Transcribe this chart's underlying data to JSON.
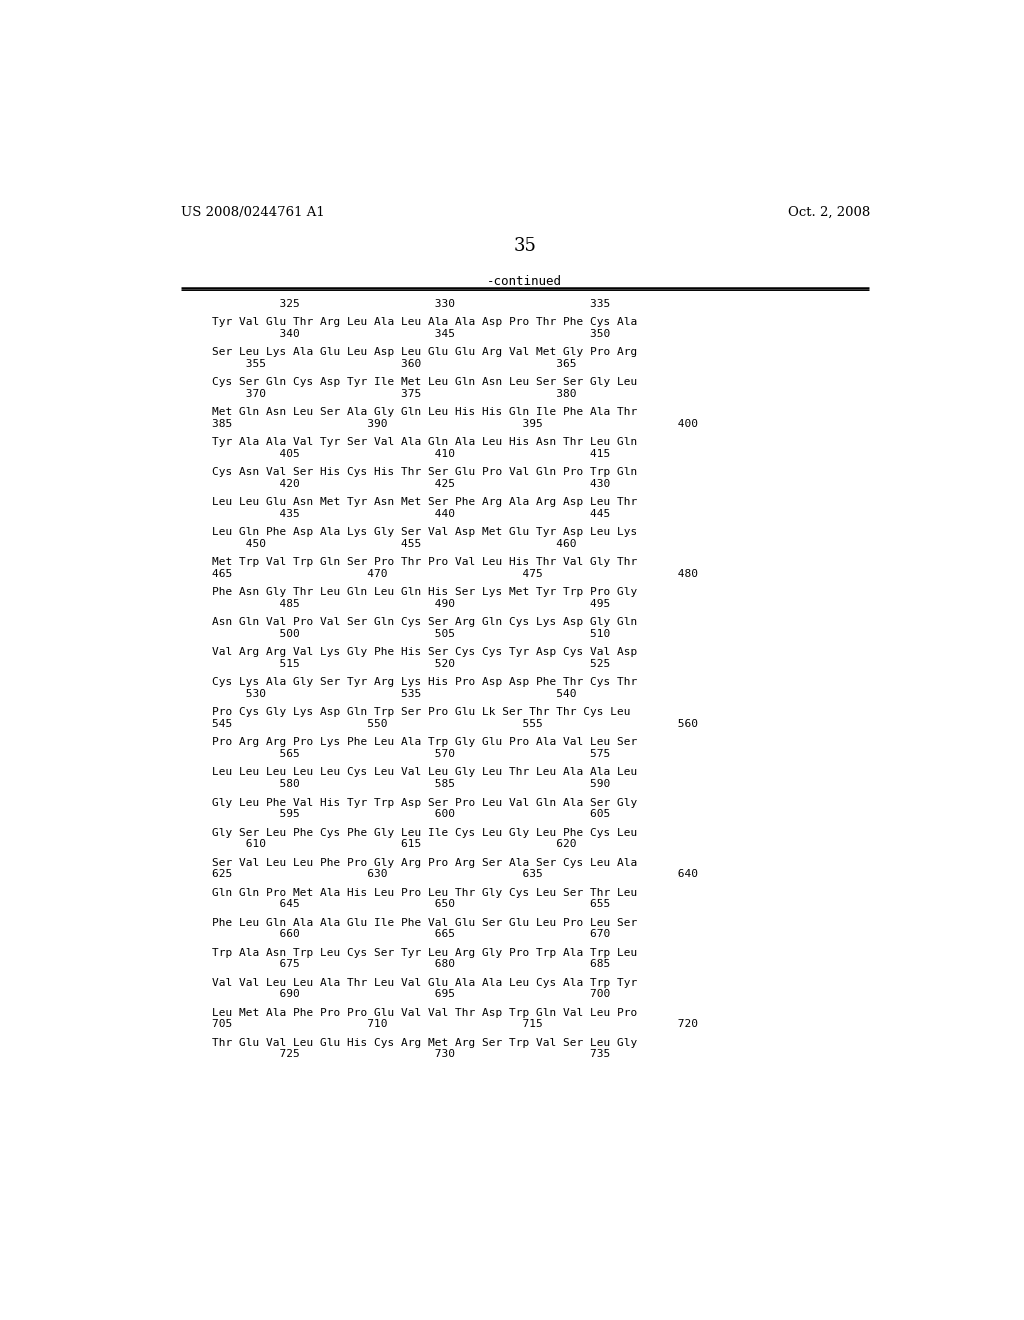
{
  "patent_number": "US 2008/0244761 A1",
  "patent_date": "Oct. 2, 2008",
  "page_number": "35",
  "continued_label": "-continued",
  "background_color": "#ffffff",
  "text_color": "#000000",
  "sequence_lines": [
    [
      "numbers",
      "          325                    330                    335"
    ],
    [
      "blank",
      ""
    ],
    [
      "seq",
      "Tyr Val Glu Thr Arg Leu Ala Leu Ala Ala Asp Pro Thr Phe Cys Ala"
    ],
    [
      "numbers",
      "          340                    345                    350"
    ],
    [
      "blank",
      ""
    ],
    [
      "seq",
      "Ser Leu Lys Ala Glu Leu Asp Leu Glu Glu Arg Val Met Gly Pro Arg"
    ],
    [
      "numbers",
      "     355                    360                    365"
    ],
    [
      "blank",
      ""
    ],
    [
      "seq",
      "Cys Ser Gln Cys Asp Tyr Ile Met Leu Gln Asn Leu Ser Ser Gly Leu"
    ],
    [
      "numbers",
      "     370                    375                    380"
    ],
    [
      "blank",
      ""
    ],
    [
      "seq",
      "Met Gln Asn Leu Ser Ala Gly Gln Leu His His Gln Ile Phe Ala Thr"
    ],
    [
      "numbers",
      "385                    390                    395                    400"
    ],
    [
      "blank",
      ""
    ],
    [
      "seq",
      "Tyr Ala Ala Val Tyr Ser Val Ala Gln Ala Leu His Asn Thr Leu Gln"
    ],
    [
      "numbers",
      "          405                    410                    415"
    ],
    [
      "blank",
      ""
    ],
    [
      "seq",
      "Cys Asn Val Ser His Cys His Thr Ser Glu Pro Val Gln Pro Trp Gln"
    ],
    [
      "numbers",
      "          420                    425                    430"
    ],
    [
      "blank",
      ""
    ],
    [
      "seq",
      "Leu Leu Glu Asn Met Tyr Asn Met Ser Phe Arg Ala Arg Asp Leu Thr"
    ],
    [
      "numbers",
      "          435                    440                    445"
    ],
    [
      "blank",
      ""
    ],
    [
      "seq",
      "Leu Gln Phe Asp Ala Lys Gly Ser Val Asp Met Glu Tyr Asp Leu Lys"
    ],
    [
      "numbers",
      "     450                    455                    460"
    ],
    [
      "blank",
      ""
    ],
    [
      "seq",
      "Met Trp Val Trp Gln Ser Pro Thr Pro Val Leu His Thr Val Gly Thr"
    ],
    [
      "numbers",
      "465                    470                    475                    480"
    ],
    [
      "blank",
      ""
    ],
    [
      "seq",
      "Phe Asn Gly Thr Leu Gln Leu Gln His Ser Lys Met Tyr Trp Pro Gly"
    ],
    [
      "numbers",
      "          485                    490                    495"
    ],
    [
      "blank",
      ""
    ],
    [
      "seq",
      "Asn Gln Val Pro Val Ser Gln Cys Ser Arg Gln Cys Lys Asp Gly Gln"
    ],
    [
      "numbers",
      "          500                    505                    510"
    ],
    [
      "blank",
      ""
    ],
    [
      "seq",
      "Val Arg Arg Val Lys Gly Phe His Ser Cys Cys Tyr Asp Cys Val Asp"
    ],
    [
      "numbers",
      "          515                    520                    525"
    ],
    [
      "blank",
      ""
    ],
    [
      "seq",
      "Cys Lys Ala Gly Ser Tyr Arg Lys His Pro Asp Asp Phe Thr Cys Thr"
    ],
    [
      "numbers",
      "     530                    535                    540"
    ],
    [
      "blank",
      ""
    ],
    [
      "seq",
      "Pro Cys Gly Lys Asp Gln Trp Ser Pro Glu Lk Ser Thr Thr Cys Leu"
    ],
    [
      "numbers",
      "545                    550                    555                    560"
    ],
    [
      "blank",
      ""
    ],
    [
      "seq",
      "Pro Arg Arg Pro Lys Phe Leu Ala Trp Gly Glu Pro Ala Val Leu Ser"
    ],
    [
      "numbers",
      "          565                    570                    575"
    ],
    [
      "blank",
      ""
    ],
    [
      "seq",
      "Leu Leu Leu Leu Leu Cys Leu Val Leu Gly Leu Thr Leu Ala Ala Leu"
    ],
    [
      "numbers",
      "          580                    585                    590"
    ],
    [
      "blank",
      ""
    ],
    [
      "seq",
      "Gly Leu Phe Val His Tyr Trp Asp Ser Pro Leu Val Gln Ala Ser Gly"
    ],
    [
      "numbers",
      "          595                    600                    605"
    ],
    [
      "blank",
      ""
    ],
    [
      "seq",
      "Gly Ser Leu Phe Cys Phe Gly Leu Ile Cys Leu Gly Leu Phe Cys Leu"
    ],
    [
      "numbers",
      "     610                    615                    620"
    ],
    [
      "blank",
      ""
    ],
    [
      "seq",
      "Ser Val Leu Leu Phe Pro Gly Arg Pro Arg Ser Ala Ser Cys Leu Ala"
    ],
    [
      "numbers",
      "625                    630                    635                    640"
    ],
    [
      "blank",
      ""
    ],
    [
      "seq",
      "Gln Gln Pro Met Ala His Leu Pro Leu Thr Gly Cys Leu Ser Thr Leu"
    ],
    [
      "numbers",
      "          645                    650                    655"
    ],
    [
      "blank",
      ""
    ],
    [
      "seq",
      "Phe Leu Gln Ala Ala Glu Ile Phe Val Glu Ser Glu Leu Pro Leu Ser"
    ],
    [
      "numbers",
      "          660                    665                    670"
    ],
    [
      "blank",
      ""
    ],
    [
      "seq",
      "Trp Ala Asn Trp Leu Cys Ser Tyr Leu Arg Gly Pro Trp Ala Trp Leu"
    ],
    [
      "numbers",
      "          675                    680                    685"
    ],
    [
      "blank",
      ""
    ],
    [
      "seq",
      "Val Val Leu Leu Ala Thr Leu Val Glu Ala Ala Leu Cys Ala Trp Tyr"
    ],
    [
      "numbers",
      "          690                    695                    700"
    ],
    [
      "blank",
      ""
    ],
    [
      "seq",
      "Leu Met Ala Phe Pro Pro Glu Val Val Thr Asp Trp Gln Val Leu Pro"
    ],
    [
      "numbers",
      "705                    710                    715                    720"
    ],
    [
      "blank",
      ""
    ],
    [
      "seq",
      "Thr Glu Val Leu Glu His Cys Arg Met Arg Ser Trp Val Ser Leu Gly"
    ],
    [
      "numbers",
      "          725                    730                    735"
    ]
  ]
}
